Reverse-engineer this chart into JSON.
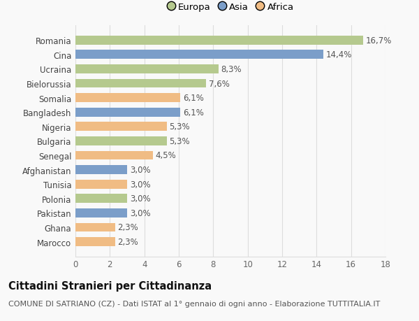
{
  "categories": [
    "Marocco",
    "Ghana",
    "Pakistan",
    "Polonia",
    "Tunisia",
    "Afghanistan",
    "Senegal",
    "Bulgaria",
    "Nigeria",
    "Bangladesh",
    "Somalia",
    "Bielorussia",
    "Ucraina",
    "Cina",
    "Romania"
  ],
  "values": [
    2.3,
    2.3,
    3.0,
    3.0,
    3.0,
    3.0,
    4.5,
    5.3,
    5.3,
    6.1,
    6.1,
    7.6,
    8.3,
    14.4,
    16.7
  ],
  "continents": [
    "Africa",
    "Africa",
    "Asia",
    "Europa",
    "Africa",
    "Asia",
    "Africa",
    "Europa",
    "Africa",
    "Asia",
    "Africa",
    "Europa",
    "Europa",
    "Asia",
    "Europa"
  ],
  "labels": [
    "2,3%",
    "2,3%",
    "3,0%",
    "3,0%",
    "3,0%",
    "3,0%",
    "4,5%",
    "5,3%",
    "5,3%",
    "6,1%",
    "6,1%",
    "7,6%",
    "8,3%",
    "14,4%",
    "16,7%"
  ],
  "colors": {
    "Europa": "#b5c98e",
    "Asia": "#7b9ec9",
    "Africa": "#f0bc84"
  },
  "xlim": [
    0,
    18
  ],
  "xticks": [
    0,
    2,
    4,
    6,
    8,
    10,
    12,
    14,
    16,
    18
  ],
  "title": "Cittadini Stranieri per Cittadinanza",
  "subtitle": "COMUNE DI SATRIANO (CZ) - Dati ISTAT al 1° gennaio di ogni anno - Elaborazione TUTTITALIA.IT",
  "background_color": "#f9f9f9",
  "grid_color": "#dddddd",
  "bar_height": 0.62,
  "label_fontsize": 8.5,
  "axis_fontsize": 8.5,
  "ytick_fontsize": 8.5,
  "title_fontsize": 10.5,
  "subtitle_fontsize": 8.0,
  "legend_fontsize": 9.5
}
